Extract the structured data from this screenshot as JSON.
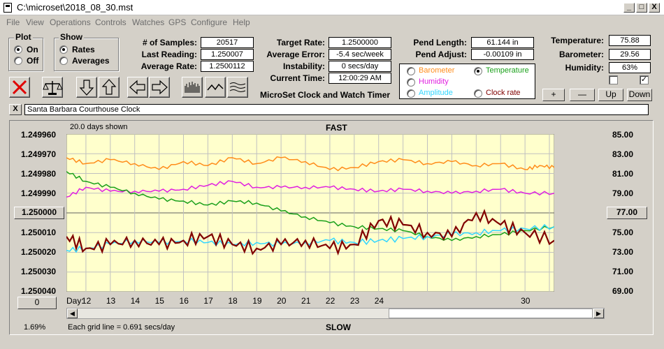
{
  "window": {
    "title": "C:\\microset\\2018_08_30.mst",
    "min": "_",
    "max": "□",
    "close": "X"
  },
  "menu": [
    "File",
    "View",
    "Operations",
    "Controls",
    "Watches",
    "GPS",
    "Configure",
    "Help"
  ],
  "plot_group": {
    "title": "Plot",
    "on": "On",
    "off": "Off",
    "selected": "On"
  },
  "show_group": {
    "title": "Show",
    "rates": "Rates",
    "averages": "Averages",
    "selected": "Rates"
  },
  "stats": {
    "samples_label": "# of Samples:",
    "samples": "20517",
    "last_label": "Last Reading:",
    "last": "1.250007",
    "avg_rate_label": "Average Rate:",
    "avg_rate": "1.2500112",
    "target_label": "Target Rate:",
    "target": "1.2500000",
    "avg_error_label": "Average Error:",
    "avg_error": "-5.4 sec/week",
    "instability_label": "Instability:",
    "instability": "0 secs/day",
    "time_label": "Current Time:",
    "time": "12:00:29 AM",
    "pend_length_label": "Pend Length:",
    "pend_length": "61.144 in",
    "pend_adjust_label": "Pend Adjust:",
    "pend_adjust": "-0.00109 in",
    "temp_label": "Temperature:",
    "temp": "75.88",
    "baro_label": "Barometer:",
    "baro": "29.56",
    "humid_label": "Humidity:",
    "humid": "63%"
  },
  "app_name": "MicroSet Clock and Watch Timer",
  "series_selector": {
    "barometer": "Barometer",
    "temperature": "Temperature",
    "humidity": "Humidity",
    "amplitude": "Amplitude",
    "clock_rate": "Clock rate",
    "selected": "Temperature"
  },
  "env_buttons": {
    "plus": "+",
    "minus": "—",
    "up": "Up",
    "down": "Down"
  },
  "clock_name": {
    "close": "X",
    "value": "Santa Barbara Courthouse Clock"
  },
  "chart_labels": {
    "days_shown": "20.0 days shown",
    "fast": "FAST",
    "slow": "SLOW",
    "grid_note": "Each grid line = 0.691 secs/day",
    "day_label": "Day:",
    "left_reading": "1.250000",
    "right_reading": "77.00",
    "bottom_left": "0",
    "percent": "1.69%"
  },
  "colors": {
    "plot_bg": "#ffffcc",
    "rate": "#800000",
    "temperature": "#1aa01a",
    "barometer": "#ff8c1a",
    "humidity": "#e020e0",
    "amplitude": "#33d6ff"
  },
  "chart_data": {
    "type": "line",
    "x_label": "Day:",
    "x_ticks": [
      12,
      13,
      14,
      15,
      16,
      17,
      18,
      19,
      20,
      21,
      22,
      23,
      24,
      30
    ],
    "xlim": [
      11.2,
      31.2
    ],
    "y_left_ticks": [
      "1.249960",
      "1.249970",
      "1.249980",
      "1.249990",
      "1.250000",
      "1.250010",
      "1.250020",
      "1.250030",
      "1.250040"
    ],
    "y_left_range": [
      1.24996,
      1.25004
    ],
    "y_left_inverted": true,
    "y_right_ticks": [
      "85.00",
      "83.00",
      "81.00",
      "79.00",
      "77.00",
      "75.00",
      "73.00",
      "71.00",
      "69.00"
    ],
    "y_right_range": [
      69,
      85
    ],
    "grid": true,
    "series": [
      {
        "name": "Barometer",
        "axis": "right",
        "color": "#ff8c1a",
        "x": [
          11.2,
          12,
          13,
          14,
          15,
          16,
          17,
          18,
          19,
          20,
          21,
          22,
          23,
          24,
          25,
          26,
          27,
          28,
          29,
          30,
          30.6,
          31.2
        ],
        "y": [
          82.6,
          82.0,
          82.4,
          82.0,
          81.4,
          82.2,
          81.8,
          82.6,
          82.0,
          82.6,
          82.2,
          81.4,
          81.6,
          82.2,
          82.4,
          82.0,
          82.2,
          81.8,
          82.0,
          81.4,
          81.8,
          81.6
        ]
      },
      {
        "name": "Humidity",
        "axis": "right",
        "color": "#e020e0",
        "x": [
          11.2,
          12,
          13,
          14,
          15,
          16,
          17,
          18,
          19,
          20,
          21,
          22,
          23,
          24,
          25,
          26,
          27,
          28,
          29,
          30,
          31.2
        ],
        "y": [
          78.6,
          79.6,
          79.2,
          79.2,
          79.2,
          79.4,
          79.8,
          80.2,
          79.6,
          79.6,
          79.6,
          79.6,
          79.4,
          79.2,
          79.4,
          79.2,
          79.0,
          79.2,
          79.4,
          79.0,
          79.0
        ]
      },
      {
        "name": "Temperature",
        "axis": "right",
        "color": "#1aa01a",
        "x": [
          11.2,
          12,
          13,
          14,
          15,
          16,
          17,
          18,
          19,
          20,
          21,
          22,
          23,
          24,
          25,
          26,
          27,
          28,
          29,
          30,
          31.2
        ],
        "y": [
          81.2,
          80.2,
          79.6,
          79.0,
          78.4,
          78.2,
          77.8,
          78.2,
          78.0,
          77.2,
          76.6,
          76.0,
          75.6,
          75.4,
          75.2,
          74.6,
          74.2,
          74.6,
          74.8,
          75.2,
          75.6
        ]
      },
      {
        "name": "Amplitude",
        "axis": "right",
        "color": "#33d6ff",
        "x": [
          11.2,
          12,
          13,
          14,
          15,
          16,
          17,
          18,
          19,
          20,
          21,
          22,
          23,
          24,
          25,
          26,
          27,
          28,
          29,
          30,
          31.2
        ],
        "y": [
          73.2,
          73.4,
          73.8,
          74.2,
          74.0,
          74.2,
          74.0,
          73.8,
          74.0,
          73.8,
          74.0,
          74.2,
          74.0,
          74.2,
          74.4,
          74.6,
          74.8,
          75.0,
          75.2,
          75.4,
          75.6
        ]
      },
      {
        "name": "Clock rate",
        "axis": "left",
        "color": "#800000",
        "x": [
          11.2,
          12,
          13,
          14,
          15,
          16,
          17,
          18,
          19,
          20,
          21,
          22,
          23,
          24,
          25,
          26,
          27,
          28,
          29,
          30,
          31.2
        ],
        "y": [
          1.250012,
          1.250018,
          1.250016,
          1.250014,
          1.250016,
          1.250014,
          1.250012,
          1.250016,
          1.250018,
          1.250016,
          1.250014,
          1.250018,
          1.250016,
          1.250004,
          1.250006,
          1.25001,
          1.250012,
          1.25,
          1.250006,
          1.25001,
          1.250014
        ]
      }
    ]
  }
}
